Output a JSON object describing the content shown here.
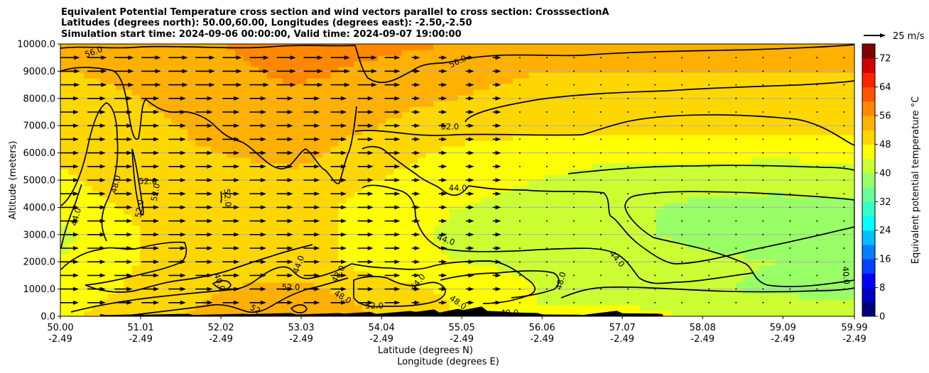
{
  "chart_data": {
    "type": "heatmap",
    "title_lines": [
      "Equivalent Potential Temperature cross section and wind vectors parallel to cross section: CrosssectionA",
      "Latitudes (degrees north): 50.00,60.00, Longitudes (degrees east): -2.50,-2.50",
      "Simulation start time: 2024-09-06 00:00:00, Valid time: 2024-09-07 19:00:00"
    ],
    "ylabel": "Altitude (meters)",
    "xlabel_lines": [
      "Latitude (degrees N)",
      "Longitude (degrees E)"
    ],
    "ylim": [
      0,
      10000
    ],
    "xlim": [
      50.0,
      59.99
    ],
    "y_ticks": [
      {
        "value": 0,
        "label": "0.0"
      },
      {
        "value": 1000,
        "label": "1000.0"
      },
      {
        "value": 2000,
        "label": "2000.0"
      },
      {
        "value": 3000,
        "label": "3000.0"
      },
      {
        "value": 4000,
        "label": "4000.0"
      },
      {
        "value": 5000,
        "label": "5000.0"
      },
      {
        "value": 6000,
        "label": "6000.0"
      },
      {
        "value": 7000,
        "label": "7000.0"
      },
      {
        "value": 8000,
        "label": "8000.0"
      },
      {
        "value": 9000,
        "label": "9000.0"
      },
      {
        "value": 10000,
        "label": "10000.0"
      }
    ],
    "x_ticks": [
      {
        "value": 50.0,
        "lat": "50.00",
        "lon": "-2.49"
      },
      {
        "value": 51.01,
        "lat": "51.01",
        "lon": "-2.49"
      },
      {
        "value": 52.02,
        "lat": "52.02",
        "lon": "-2.49"
      },
      {
        "value": 53.03,
        "lat": "53.03",
        "lon": "-2.49"
      },
      {
        "value": 54.04,
        "lat": "54.04",
        "lon": "-2.49"
      },
      {
        "value": 55.05,
        "lat": "55.05",
        "lon": "-2.49"
      },
      {
        "value": 56.06,
        "lat": "56.06",
        "lon": "-2.49"
      },
      {
        "value": 57.07,
        "lat": "57.07",
        "lon": "-2.49"
      },
      {
        "value": 58.08,
        "lat": "58.08",
        "lon": "-2.49"
      },
      {
        "value": 59.09,
        "lat": "59.09",
        "lon": "-2.49"
      },
      {
        "value": 59.99,
        "lat": "59.99",
        "lon": "-2.49"
      }
    ],
    "grid": "horizontal",
    "colorbar": {
      "label": "Equivalent potential temperature $^\\circ$C",
      "label_display": "Equivalent potential temperature °C",
      "min": 0,
      "max": 76,
      "ticks": [
        0,
        8,
        16,
        24,
        32,
        40,
        48,
        56,
        64,
        72
      ],
      "tick_labels": [
        "0",
        "8",
        "16",
        "24",
        "32",
        "40",
        "48",
        "56",
        "64",
        "72"
      ],
      "colors": [
        "#00007f",
        "#0000c4",
        "#0000ff",
        "#0040ff",
        "#0080ff",
        "#00c0ff",
        "#00ffff",
        "#33ffcc",
        "#66ff99",
        "#99ff66",
        "#ccff33",
        "#ffff00",
        "#ffd700",
        "#ffb000",
        "#ff8800",
        "#ff5500",
        "#ff2200",
        "#d00000",
        "#800000"
      ]
    },
    "quiver_key": {
      "label": "25 m/s",
      "speed": 25
    },
    "field_samples": {
      "lats": [
        50.0,
        51.0,
        52.0,
        53.0,
        54.0,
        55.0,
        56.0,
        57.0,
        58.0,
        59.0,
        59.99
      ],
      "alts": [
        0,
        1000,
        2000,
        3000,
        4000,
        5000,
        6000,
        7000,
        8000,
        9000,
        10000
      ],
      "theta_e": [
        [
          47,
          51,
          53,
          55,
          52,
          48,
          44,
          45,
          44,
          43,
          42
        ],
        [
          45,
          49,
          52,
          53,
          50,
          47,
          44,
          43,
          41,
          39,
          39
        ],
        [
          44,
          48,
          50,
          50,
          46,
          44,
          43,
          42,
          41,
          40,
          39
        ],
        [
          43,
          48,
          50,
          50,
          46,
          43,
          42,
          41,
          39,
          38,
          38
        ],
        [
          45,
          49,
          51,
          50,
          46,
          44,
          43,
          41,
          39,
          39,
          39
        ],
        [
          47,
          51,
          51,
          51,
          48,
          45,
          44,
          42,
          42,
          41,
          42
        ],
        [
          49,
          51,
          52,
          53,
          50,
          47,
          46,
          45,
          45,
          45,
          45
        ],
        [
          50,
          51,
          53,
          54,
          52,
          50,
          49,
          49,
          49,
          49,
          49
        ],
        [
          50,
          52,
          54,
          55,
          53,
          52,
          51,
          51,
          51,
          51,
          51
        ],
        [
          52,
          53,
          55,
          57,
          55,
          53,
          52,
          52,
          52,
          52,
          52
        ],
        [
          54,
          56,
          56,
          57,
          57,
          56,
          55,
          55,
          55,
          55,
          56
        ]
      ]
    },
    "terrain": [
      {
        "lat": 50.5,
        "alt": 80
      },
      {
        "lat": 51.0,
        "alt": 110
      },
      {
        "lat": 51.6,
        "alt": 90
      },
      {
        "lat": 52.3,
        "alt": 140
      },
      {
        "lat": 52.9,
        "alt": 120
      },
      {
        "lat": 53.5,
        "alt": 180
      },
      {
        "lat": 53.9,
        "alt": 160
      },
      {
        "lat": 54.4,
        "alt": 300
      },
      {
        "lat": 54.7,
        "alt": 250
      },
      {
        "lat": 55.0,
        "alt": 420
      },
      {
        "lat": 55.3,
        "alt": 360
      },
      {
        "lat": 55.6,
        "alt": 260
      },
      {
        "lat": 56.0,
        "alt": 120
      },
      {
        "lat": 56.5,
        "alt": 90
      },
      {
        "lat": 57.0,
        "alt": 200
      },
      {
        "lat": 57.5,
        "alt": 150
      }
    ],
    "contour_labels": [
      {
        "text": "56.0",
        "lat": 50.42,
        "alt": 9700,
        "rot": -20
      },
      {
        "text": "56.0",
        "lat": 55.0,
        "alt": 9350,
        "rot": -25
      },
      {
        "text": "52.0",
        "lat": 54.9,
        "alt": 6950,
        "rot": 0
      },
      {
        "text": "52.0",
        "lat": 51.1,
        "alt": 4950,
        "rot": 0
      },
      {
        "text": "52.0",
        "lat": 51.2,
        "alt": 4550,
        "rot": -80
      },
      {
        "text": "52.0",
        "lat": 52.1,
        "alt": 4350,
        "rot": 85
      },
      {
        "text": "52.0",
        "lat": 51.0,
        "alt": 3950,
        "rot": -80
      },
      {
        "text": "48.0",
        "lat": 50.7,
        "alt": 4850,
        "rot": -75
      },
      {
        "text": "44.0",
        "lat": 50.2,
        "alt": 3650,
        "rot": -75
      },
      {
        "text": "44.0",
        "lat": 55.0,
        "alt": 4700,
        "rot": 0
      },
      {
        "text": "44.0",
        "lat": 54.85,
        "alt": 2800,
        "rot": 20
      },
      {
        "text": "44.0",
        "lat": 57.0,
        "alt": 2100,
        "rot": 50
      },
      {
        "text": "40.0",
        "lat": 59.88,
        "alt": 1500,
        "rot": 85
      },
      {
        "text": "40.0",
        "lat": 52.0,
        "alt": 1250,
        "rot": 70
      },
      {
        "text": "48.0",
        "lat": 56.3,
        "alt": 1300,
        "rot": -75
      },
      {
        "text": "48.0",
        "lat": 53.5,
        "alt": 1550,
        "rot": -60
      },
      {
        "text": "44.0",
        "lat": 53.0,
        "alt": 1900,
        "rot": -70
      },
      {
        "text": "44.0",
        "lat": 54.5,
        "alt": 1250,
        "rot": -50
      },
      {
        "text": "52.0",
        "lat": 52.9,
        "alt": 1050,
        "rot": 0
      },
      {
        "text": "48.0",
        "lat": 53.55,
        "alt": 700,
        "rot": 30
      },
      {
        "text": "52.0",
        "lat": 53.95,
        "alt": 380,
        "rot": 0
      },
      {
        "text": "48.0",
        "lat": 55.0,
        "alt": 500,
        "rot": 35
      },
      {
        "text": "40.0",
        "lat": 55.65,
        "alt": 120,
        "rot": 0
      },
      {
        "text": "52",
        "lat": 52.45,
        "alt": 250,
        "rot": 30
      }
    ]
  }
}
